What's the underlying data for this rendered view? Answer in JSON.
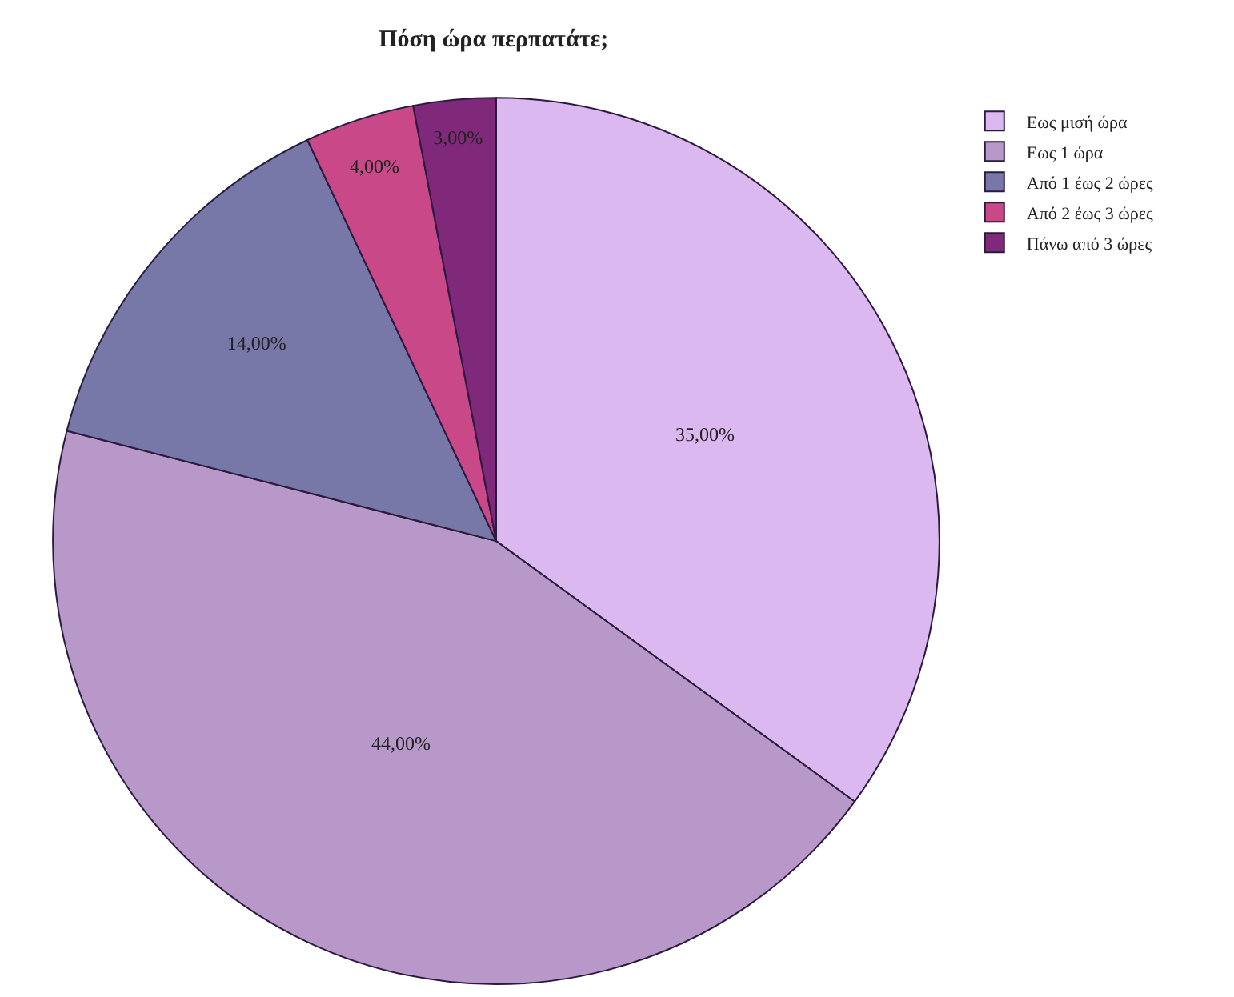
{
  "chart_data": {
    "type": "pie",
    "title": "Πόση ώρα περπατάτε;",
    "categories": [
      "Εως μισή ώρα",
      "Εως 1 ώρα",
      "Από 1 έως 2 ώρες",
      "Από 2 έως 3 ώρες",
      "Πάνω από 3 ώρες"
    ],
    "values": [
      35,
      44,
      14,
      4,
      3
    ],
    "colors": [
      "#dcb8f0",
      "#b898c8",
      "#7878a8",
      "#c84888",
      "#80287a"
    ],
    "value_labels": [
      "35,00%",
      "44,00%",
      "14,00%",
      "4,00%",
      "3,00%"
    ],
    "legend": "top right"
  }
}
